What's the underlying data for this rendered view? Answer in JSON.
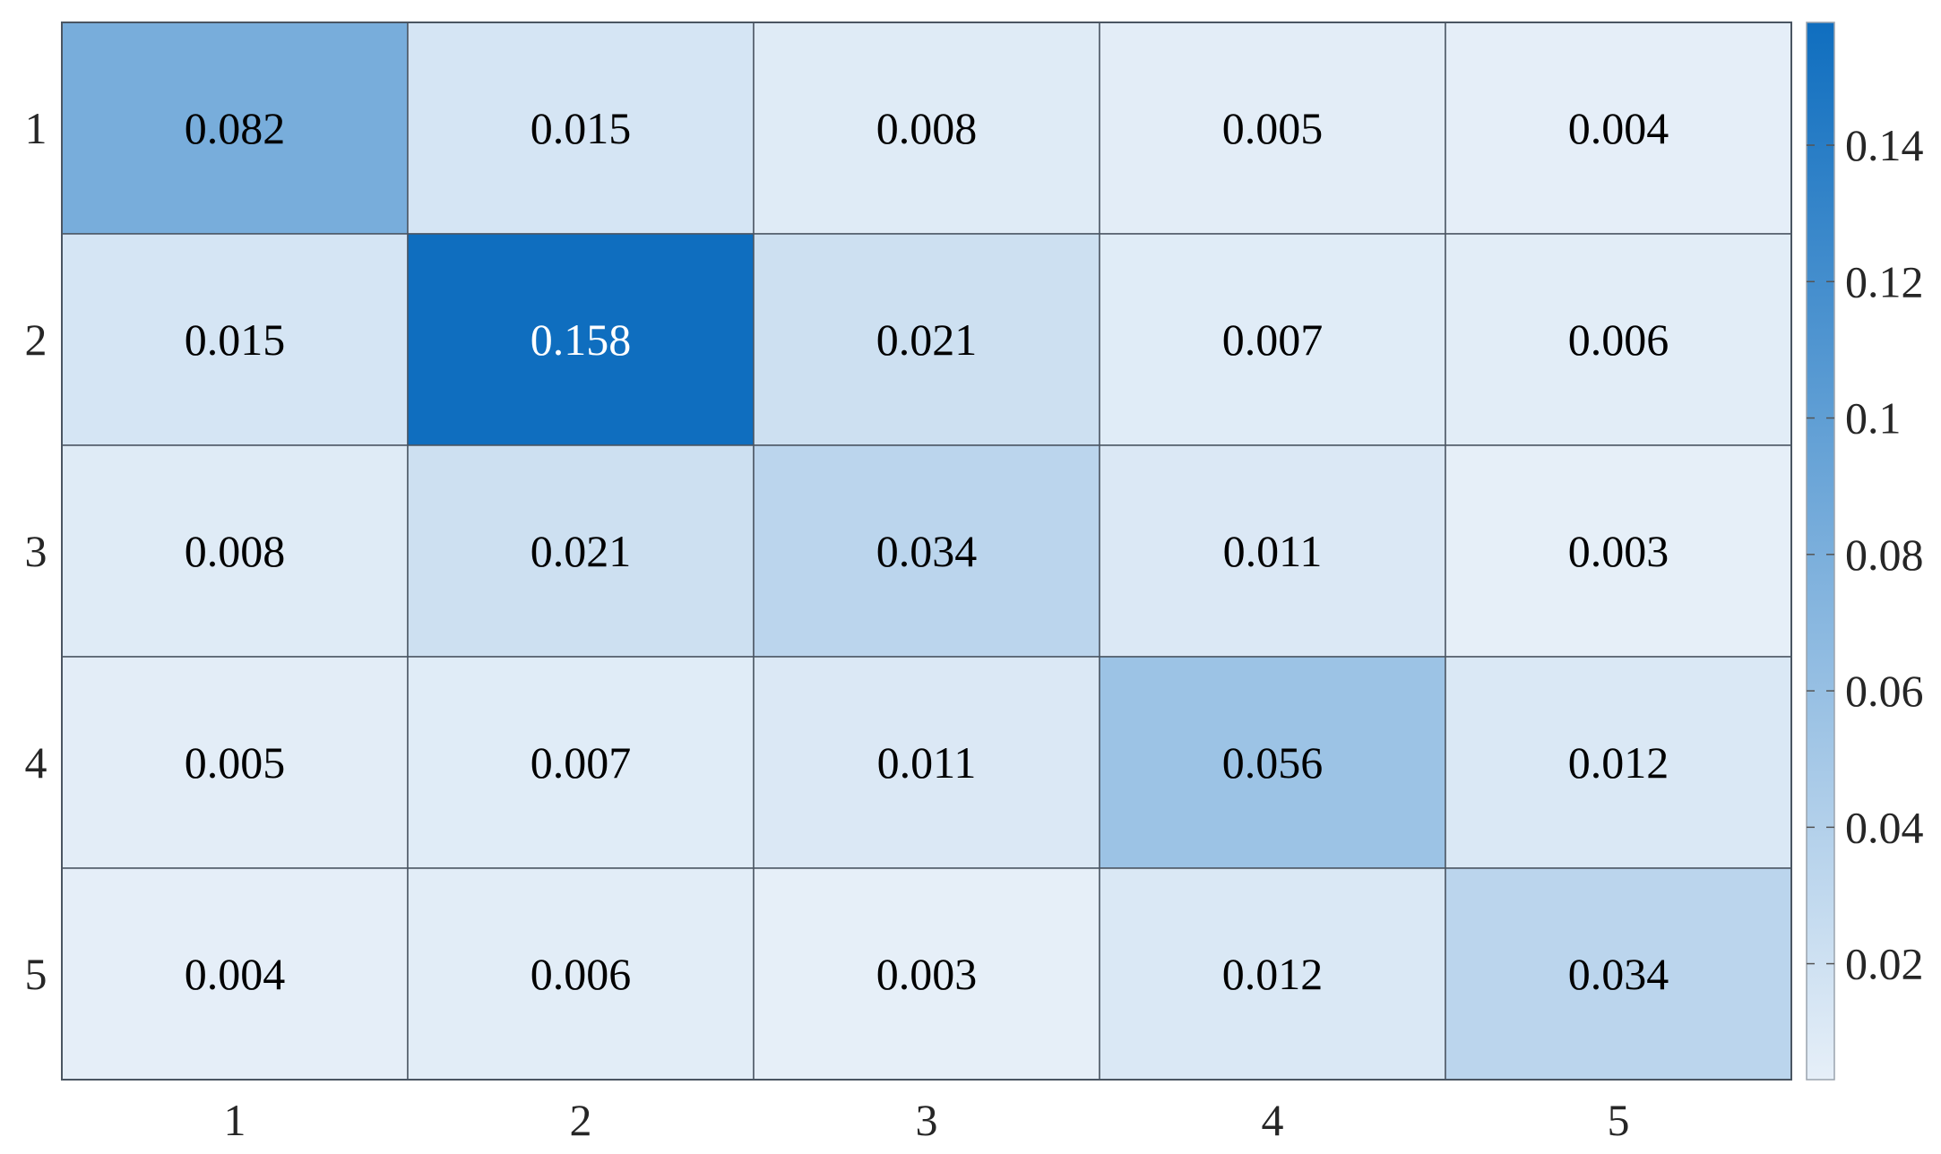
{
  "chart_data": {
    "type": "heatmap",
    "title": "",
    "xlabel": "",
    "ylabel": "",
    "x_categories": [
      "1",
      "2",
      "3",
      "4",
      "5"
    ],
    "y_categories": [
      "1",
      "2",
      "3",
      "4",
      "5"
    ],
    "values": [
      [
        0.082,
        0.015,
        0.008,
        0.005,
        0.004
      ],
      [
        0.015,
        0.158,
        0.021,
        0.007,
        0.006
      ],
      [
        0.008,
        0.021,
        0.034,
        0.011,
        0.003
      ],
      [
        0.005,
        0.007,
        0.011,
        0.056,
        0.012
      ],
      [
        0.004,
        0.006,
        0.003,
        0.012,
        0.034
      ]
    ],
    "cell_labels": [
      [
        "0.082",
        "0.015",
        "0.008",
        "0.005",
        "0.004"
      ],
      [
        "0.015",
        "0.158",
        "0.021",
        "0.007",
        "0.006"
      ],
      [
        "0.008",
        "0.021",
        "0.034",
        "0.011",
        "0.003"
      ],
      [
        "0.005",
        "0.007",
        "0.011",
        "0.056",
        "0.012"
      ],
      [
        "0.004",
        "0.006",
        "0.003",
        "0.012",
        "0.034"
      ]
    ],
    "colorbar": {
      "range": [
        0.003,
        0.158
      ],
      "ticks": [
        0.02,
        0.04,
        0.06,
        0.08,
        0.1,
        0.12,
        0.14
      ],
      "tick_labels": [
        "0.02",
        "0.04",
        "0.06",
        "0.08",
        "0.1",
        "0.12",
        "0.14"
      ],
      "color_low": "#e6eff8",
      "color_high": "#0f6ebf",
      "placement": "right"
    },
    "grid": true,
    "text_color_dark": "#000000",
    "text_color_light": "#ffffff",
    "cell_border_color": "#4a5562"
  }
}
